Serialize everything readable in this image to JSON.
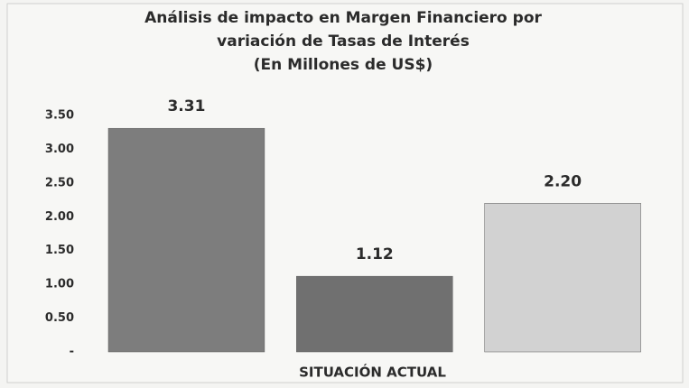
{
  "chart_data": {
    "type": "bar",
    "title": [
      "Análisis de impacto en Margen Financiero por",
      "variación de Tasas de Interés",
      "(En Millones de US$)"
    ],
    "categories": [
      "SITUACIÓN ACTUAL"
    ],
    "series": [
      {
        "color": "#7d7d7d",
        "values": [
          3.31
        ],
        "value_labels": [
          "3.31"
        ]
      },
      {
        "color": "#707070",
        "values": [
          1.12
        ],
        "value_labels": [
          "1.12"
        ]
      },
      {
        "color": "#d2d2d2",
        "values": [
          2.2
        ],
        "value_labels": [
          "2.20"
        ]
      }
    ],
    "ylim": [
      0,
      3.5
    ],
    "yticks": [
      {
        "value": 0,
        "label": "-"
      },
      {
        "value": 0.5,
        "label": "0.50"
      },
      {
        "value": 1,
        "label": "1.00"
      },
      {
        "value": 1.5,
        "label": "1.50"
      },
      {
        "value": 2,
        "label": "2.00"
      },
      {
        "value": 2.5,
        "label": "2.50"
      },
      {
        "value": 3,
        "label": "3.00"
      },
      {
        "value": 3.5,
        "label": "3.50"
      }
    ],
    "grid": false
  }
}
